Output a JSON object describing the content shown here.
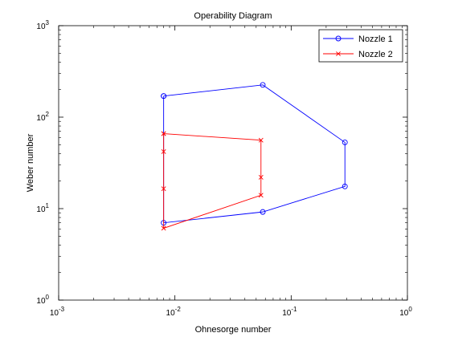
{
  "chart_data": {
    "type": "line",
    "title": "Operability Diagram",
    "xlabel": "Ohnesorge number",
    "ylabel": "Weber number",
    "x_scale": "log",
    "y_scale": "log",
    "xlim": [
      0.001,
      1
    ],
    "ylim": [
      1,
      1000
    ],
    "grid": false,
    "legend_position": "top-right",
    "x_ticks": [
      {
        "value": 0.001,
        "base": "10",
        "exp": "-3"
      },
      {
        "value": 0.01,
        "base": "10",
        "exp": "-2"
      },
      {
        "value": 0.1,
        "base": "10",
        "exp": "-1"
      },
      {
        "value": 1,
        "base": "10",
        "exp": "0"
      }
    ],
    "y_ticks": [
      {
        "value": 1,
        "base": "10",
        "exp": "0"
      },
      {
        "value": 10,
        "base": "10",
        "exp": "1"
      },
      {
        "value": 100,
        "base": "10",
        "exp": "2"
      },
      {
        "value": 1000,
        "base": "10",
        "exp": "3"
      }
    ],
    "series": [
      {
        "name": "Nozzle 1",
        "color": "#0000ff",
        "marker": "circle",
        "points": [
          {
            "x": 0.008,
            "y": 170
          },
          {
            "x": 0.057,
            "y": 225
          },
          {
            "x": 0.29,
            "y": 53
          },
          {
            "x": 0.29,
            "y": 17.5
          },
          {
            "x": 0.057,
            "y": 9.2
          },
          {
            "x": 0.008,
            "y": 7.0
          },
          {
            "x": 0.008,
            "y": 170
          }
        ]
      },
      {
        "name": "Nozzle 2",
        "color": "#ff0000",
        "marker": "x",
        "points": [
          {
            "x": 0.008,
            "y": 66
          },
          {
            "x": 0.055,
            "y": 56
          },
          {
            "x": 0.055,
            "y": 22
          },
          {
            "x": 0.055,
            "y": 14
          },
          {
            "x": 0.008,
            "y": 6.1
          },
          {
            "x": 0.008,
            "y": 16.5
          },
          {
            "x": 0.008,
            "y": 42
          },
          {
            "x": 0.008,
            "y": 66
          }
        ]
      }
    ]
  }
}
